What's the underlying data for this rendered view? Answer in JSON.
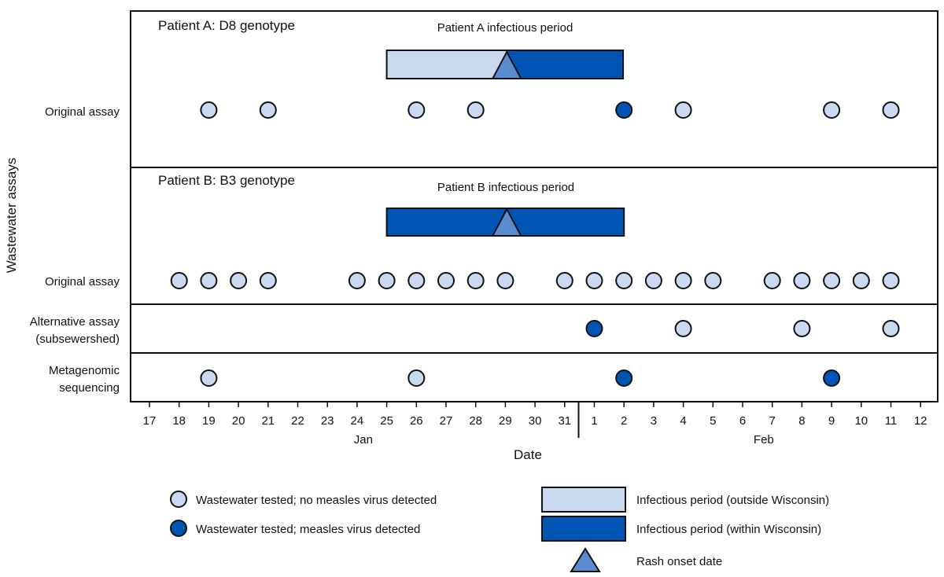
{
  "chart_data": {
    "type": "timeline",
    "y_axis_label": "Wastewater assays",
    "x_axis_label": "Date",
    "months": [
      {
        "label": "Jan",
        "start": 0,
        "end": 14
      },
      {
        "label": "Feb",
        "start": 15,
        "end": 26
      }
    ],
    "x_tick_labels": [
      "17",
      "18",
      "19",
      "20",
      "21",
      "22",
      "23",
      "24",
      "25",
      "26",
      "27",
      "28",
      "29",
      "30",
      "31",
      "1",
      "2",
      "3",
      "4",
      "5",
      "6",
      "7",
      "8",
      "9",
      "10",
      "11",
      "12"
    ],
    "panels": [
      {
        "title": "Patient A: D8 genotype",
        "infectious_period": {
          "label": "Patient A infectious period",
          "outside_start": "Jan 25",
          "outside_end": "Jan 29",
          "within_start": "Jan 29",
          "within_end": "Feb 2",
          "rash_onset": "Jan 29",
          "x_outside": [
            8,
            12.05
          ],
          "x_within": [
            12.05,
            15.97
          ],
          "x_rash": 12.05
        },
        "rows": [
          {
            "label": "Original assay",
            "samples": [
              {
                "x": 2,
                "detected": false
              },
              {
                "x": 4,
                "detected": false
              },
              {
                "x": 9,
                "detected": false
              },
              {
                "x": 11,
                "detected": false
              },
              {
                "x": 16,
                "detected": true
              },
              {
                "x": 18,
                "detected": false
              },
              {
                "x": 23,
                "detected": false
              },
              {
                "x": 25,
                "detected": false
              }
            ]
          }
        ]
      },
      {
        "title": "Patient B: B3 genotype",
        "infectious_period": {
          "label": "Patient B infectious period",
          "outside_start": null,
          "outside_end": null,
          "within_start": "Jan 25",
          "within_end": "Feb 2",
          "rash_onset": "Jan 29",
          "x_outside": null,
          "x_within": [
            8,
            16
          ],
          "x_rash": 12.05
        },
        "rows": [
          {
            "label": "Original assay",
            "samples": [
              {
                "x": 1,
                "detected": false
              },
              {
                "x": 2,
                "detected": false
              },
              {
                "x": 3,
                "detected": false
              },
              {
                "x": 4,
                "detected": false
              },
              {
                "x": 7,
                "detected": false
              },
              {
                "x": 8,
                "detected": false
              },
              {
                "x": 9,
                "detected": false
              },
              {
                "x": 10,
                "detected": false
              },
              {
                "x": 11,
                "detected": false
              },
              {
                "x": 12,
                "detected": false
              },
              {
                "x": 14,
                "detected": false
              },
              {
                "x": 15,
                "detected": false
              },
              {
                "x": 16,
                "detected": false
              },
              {
                "x": 17,
                "detected": false
              },
              {
                "x": 18,
                "detected": false
              },
              {
                "x": 19,
                "detected": false
              },
              {
                "x": 21,
                "detected": false
              },
              {
                "x": 22,
                "detected": false
              },
              {
                "x": 23,
                "detected": false
              },
              {
                "x": 24,
                "detected": false
              },
              {
                "x": 25,
                "detected": false
              }
            ]
          },
          {
            "label_lines": [
              "Alternative assay",
              "(subsewershed)"
            ],
            "samples": [
              {
                "x": 15,
                "detected": true
              },
              {
                "x": 18,
                "detected": false
              },
              {
                "x": 22,
                "detected": false
              },
              {
                "x": 25,
                "detected": false
              }
            ]
          },
          {
            "label_lines": [
              "Metagenomic",
              "sequencing"
            ],
            "samples": [
              {
                "x": 2,
                "detected": false
              },
              {
                "x": 9,
                "detected": false
              },
              {
                "x": 16,
                "detected": true
              },
              {
                "x": 23,
                "detected": true
              }
            ]
          }
        ]
      }
    ],
    "legend": {
      "not_detected": "Wastewater tested; no measles virus detected",
      "detected": "Wastewater tested; measles virus detected",
      "outside": "Infectious period (outside Wisconsin)",
      "within": "Infectious period (within Wisconsin)",
      "rash": "Rash onset date"
    },
    "colors": {
      "light": "#c9d9f0",
      "dark": "#0054b4",
      "triangle": "#5b8bd0",
      "stroke": "#111111"
    }
  }
}
